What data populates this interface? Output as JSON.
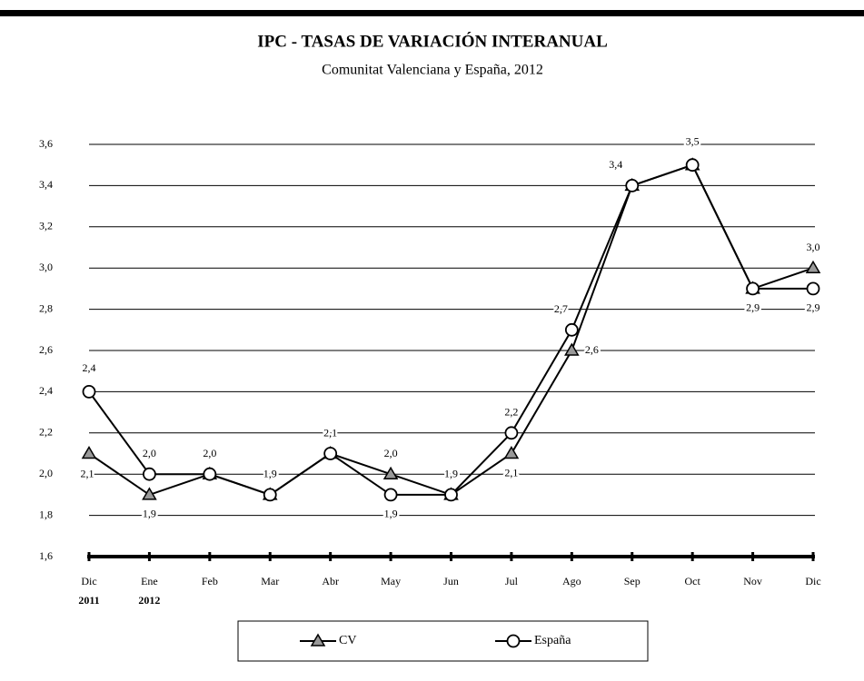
{
  "chart_data": {
    "type": "line",
    "title": "IPC - TASAS DE VARIACIÓN INTERANUAL",
    "subtitle": "Comunitat Valenciana y España, 2012",
    "categories": [
      "Dic",
      "Ene",
      "Feb",
      "Mar",
      "Abr",
      "May",
      "Jun",
      "Jul",
      "Ago",
      "Sep",
      "Oct",
      "Nov",
      "Dic"
    ],
    "year_labels": [
      "2011",
      "2012"
    ],
    "series": [
      {
        "name": "CV",
        "color": "#000000",
        "marker": "triangle",
        "values": [
          2.1,
          1.9,
          2.0,
          1.9,
          2.1,
          2.0,
          1.9,
          2.1,
          2.6,
          3.4,
          3.5,
          2.9,
          3.0
        ],
        "value_labels": [
          "2,1",
          "1,9",
          null,
          null,
          null,
          "2,0",
          null,
          "2,1",
          "2,6",
          null,
          null,
          null,
          "3,0"
        ]
      },
      {
        "name": "España",
        "color": "#000000",
        "marker": "circle",
        "values": [
          2.4,
          2.0,
          2.0,
          1.9,
          2.1,
          1.9,
          1.9,
          2.2,
          2.7,
          3.4,
          3.5,
          2.9,
          2.9
        ],
        "value_labels": [
          "2,4",
          "2,0",
          "2,0",
          "1,9",
          "2,1",
          "1,9",
          "1,9",
          "2,2",
          "2,7",
          "3,4",
          "3,5",
          "2,9",
          "2,9"
        ]
      }
    ],
    "ylim": [
      1.6,
      3.6
    ],
    "yticks": [
      {
        "value": 1.6,
        "label": "1,6"
      },
      {
        "value": 1.8,
        "label": "1,8"
      },
      {
        "value": 2.0,
        "label": "2,0"
      },
      {
        "value": 2.2,
        "label": "2,2"
      },
      {
        "value": 2.4,
        "label": "2,4"
      },
      {
        "value": 2.6,
        "label": "2,6"
      },
      {
        "value": 2.8,
        "label": "2,8"
      },
      {
        "value": 3.0,
        "label": "3,0"
      },
      {
        "value": 3.2,
        "label": "3,2"
      },
      {
        "value": 3.4,
        "label": "3,4"
      },
      {
        "value": 3.6,
        "label": "3,6"
      }
    ],
    "grid": true,
    "legend": "bottom"
  }
}
